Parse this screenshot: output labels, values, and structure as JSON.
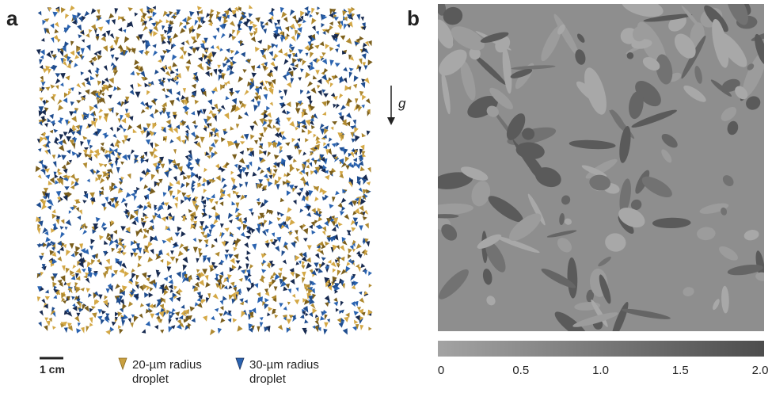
{
  "panels": {
    "a": {
      "label": "a",
      "gravity": "g",
      "scale_bar": "1 cm",
      "legend": [
        {
          "line1": "20-µm radius",
          "line2": "droplet"
        },
        {
          "line1": "30-µm radius",
          "line2": "droplet"
        }
      ]
    },
    "b": {
      "label": "b",
      "colorbar_ticks": [
        "0",
        "0.5",
        "1.0",
        "1.5",
        "2.0"
      ]
    }
  }
}
